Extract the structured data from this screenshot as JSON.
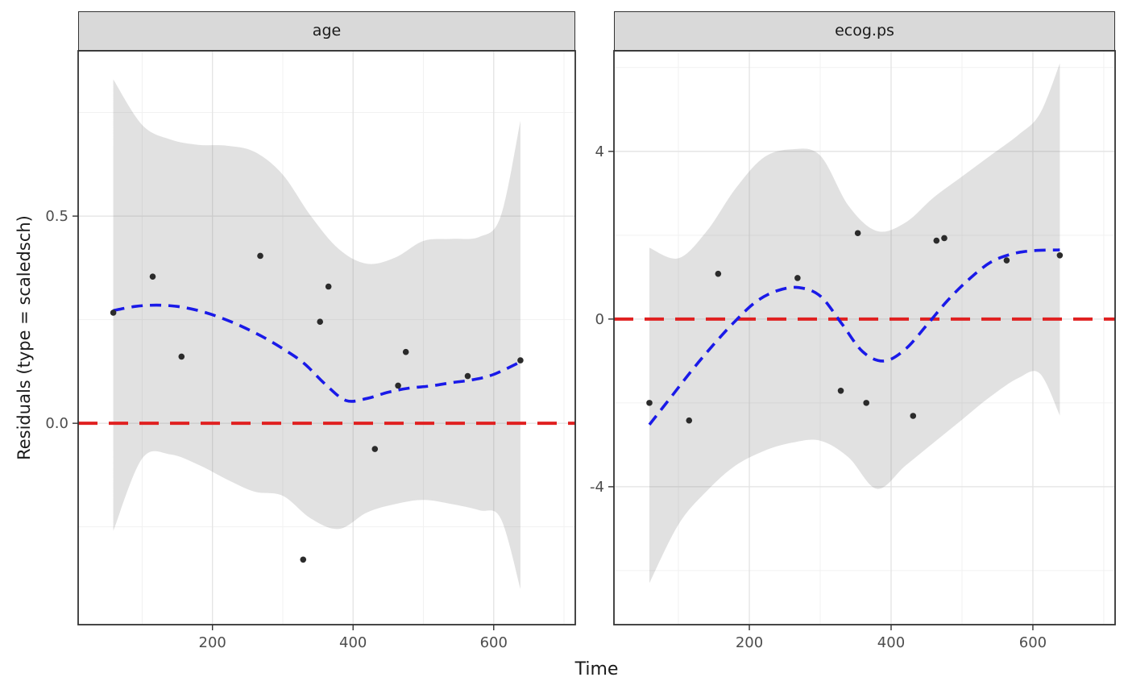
{
  "chart_data": {
    "type": "scatter",
    "title": "",
    "xlabel": "Time",
    "ylabel": "Residuals (type = scaledsch)",
    "x_domain": [
      9,
      716
    ],
    "x_ticks": [
      200,
      400,
      600
    ],
    "x_tick_labels": [
      "200",
      "400",
      "600"
    ],
    "x_minor": [
      100,
      300,
      500,
      700
    ],
    "legend": "none",
    "grid": "on",
    "colors": {
      "smooth_line": "#1A1AE8",
      "reference_line": "#E02020",
      "band_fill": "rgba(120,120,120,0.22)",
      "point": "#2B2B2B",
      "grid_major": "#E3E3E3",
      "grid_minor": "#F1F1F1",
      "panel_border": "#333333",
      "strip_bg": "#D9D9D9",
      "tick": "#333333",
      "tick_label": "#4D4D4D"
    },
    "facets": [
      {
        "title": "age",
        "y_domain": [
          -0.486,
          0.899
        ],
        "y_ticks": [
          0.0,
          0.5
        ],
        "y_tick_labels": [
          "0.0",
          "0.5"
        ],
        "y_minor": [
          -0.25,
          0.25,
          0.75
        ],
        "reference_y": 0,
        "points": {
          "t": [
            59,
            115,
            156,
            268,
            329,
            353,
            365,
            431,
            464,
            475,
            563,
            638
          ],
          "y": [
            0.267,
            0.354,
            0.161,
            0.404,
            -0.329,
            0.245,
            0.33,
            -0.062,
            0.091,
            0.172,
            0.114,
            0.152
          ]
        },
        "smooth": {
          "t": [
            59,
            90,
            120,
            150,
            180,
            210,
            240,
            270,
            300,
            330,
            360,
            390,
            420,
            450,
            480,
            510,
            540,
            570,
            600,
            638
          ],
          "y": [
            0.272,
            0.282,
            0.285,
            0.282,
            0.272,
            0.256,
            0.235,
            0.21,
            0.18,
            0.145,
            0.095,
            0.055,
            0.06,
            0.075,
            0.085,
            0.09,
            0.098,
            0.105,
            0.118,
            0.148
          ]
        },
        "band": {
          "t": [
            59,
            100,
            140,
            180,
            220,
            260,
            300,
            340,
            380,
            420,
            460,
            500,
            540,
            580,
            610,
            638
          ],
          "hi": [
            0.83,
            0.72,
            0.685,
            0.672,
            0.67,
            0.655,
            0.6,
            0.5,
            0.42,
            0.385,
            0.4,
            0.44,
            0.445,
            0.45,
            0.5,
            0.73
          ],
          "lo": [
            -0.26,
            -0.085,
            -0.075,
            -0.1,
            -0.135,
            -0.165,
            -0.175,
            -0.23,
            -0.255,
            -0.215,
            -0.195,
            -0.185,
            -0.195,
            -0.21,
            -0.23,
            -0.4
          ]
        }
      },
      {
        "title": "ecog.ps",
        "y_domain": [
          -7.29,
          6.4
        ],
        "y_ticks": [
          -4,
          0,
          4
        ],
        "y_tick_labels": [
          "-4",
          "0",
          "4"
        ],
        "y_minor": [
          -6,
          -2,
          2,
          6
        ],
        "reference_y": 0,
        "points": {
          "t": [
            59,
            115,
            156,
            268,
            329,
            353,
            365,
            431,
            464,
            475,
            563,
            638
          ],
          "y": [
            -2.0,
            -2.42,
            1.08,
            0.98,
            -1.71,
            2.05,
            -2.0,
            -2.31,
            1.87,
            1.93,
            1.4,
            1.52
          ]
        },
        "smooth": {
          "t": [
            59,
            90,
            120,
            150,
            180,
            210,
            240,
            270,
            300,
            330,
            360,
            390,
            420,
            450,
            480,
            510,
            540,
            570,
            600,
            638
          ],
          "y": [
            -2.52,
            -1.85,
            -1.2,
            -0.6,
            -0.05,
            0.42,
            0.68,
            0.75,
            0.55,
            -0.1,
            -0.78,
            -1.0,
            -0.72,
            -0.15,
            0.45,
            0.95,
            1.35,
            1.55,
            1.63,
            1.65
          ]
        },
        "band": {
          "t": [
            59,
            100,
            140,
            180,
            220,
            260,
            300,
            340,
            380,
            420,
            460,
            500,
            540,
            580,
            610,
            638
          ],
          "hi": [
            1.7,
            1.45,
            2.1,
            3.1,
            3.85,
            4.05,
            3.9,
            2.7,
            2.1,
            2.3,
            2.9,
            3.4,
            3.9,
            4.4,
            4.9,
            6.1
          ],
          "lo": [
            -6.3,
            -4.9,
            -4.1,
            -3.5,
            -3.15,
            -2.95,
            -2.9,
            -3.3,
            -4.05,
            -3.5,
            -2.95,
            -2.4,
            -1.85,
            -1.4,
            -1.3,
            -2.3
          ]
        }
      }
    ]
  }
}
